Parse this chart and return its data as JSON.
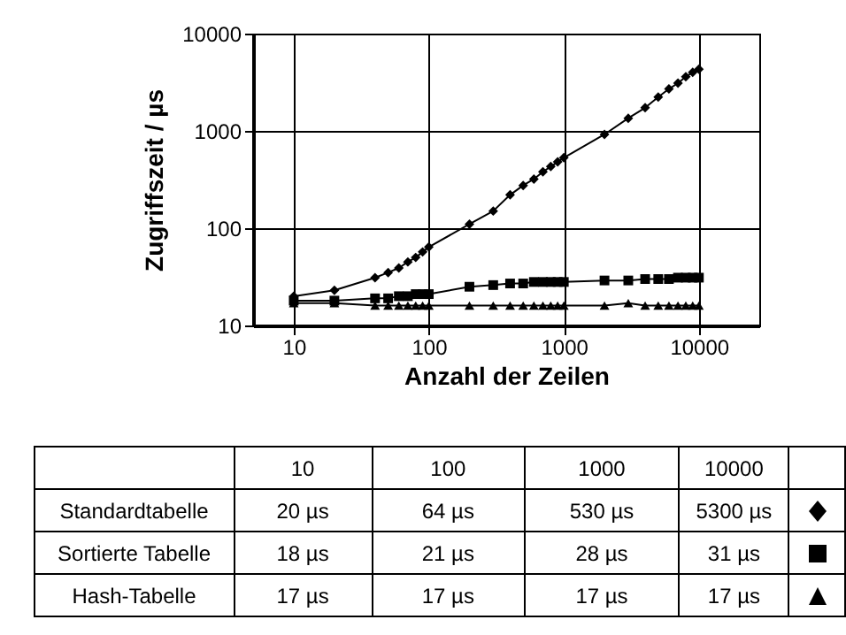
{
  "chart_data": [
    {
      "type": "line",
      "xlabel": "Anzahl der Zeilen",
      "ylabel": "Zugriffszeit / µs",
      "log": "xy",
      "grid": true,
      "xlim": [
        5,
        28000
      ],
      "xticks": [
        10,
        100,
        1000,
        10000
      ],
      "ylim": [
        10,
        10000
      ],
      "yticks": [
        10,
        100,
        1000,
        10000
      ],
      "x": [
        10,
        20,
        40,
        50,
        60,
        70,
        80,
        90,
        100,
        200,
        300,
        400,
        500,
        600,
        700,
        800,
        900,
        1000,
        2000,
        3000,
        4000,
        5000,
        6000,
        7000,
        8000,
        9000,
        10000
      ],
      "series": [
        {
          "name": "Standardtabelle",
          "color": "#000000",
          "marker": "diamond",
          "values": [
            20,
            23,
            31,
            35,
            39,
            45,
            50,
            57,
            64,
            110,
            150,
            220,
            275,
            320,
            380,
            430,
            480,
            530,
            920,
            1350,
            1730,
            2230,
            2700,
            3100,
            3600,
            4000,
            4300
          ]
        },
        {
          "name": "Sortierte Tabelle",
          "color": "#000000",
          "marker": "square",
          "values": [
            18,
            18,
            19,
            19,
            20,
            20,
            21,
            21,
            21,
            25,
            26,
            27,
            27,
            28,
            28,
            28,
            28,
            28,
            29,
            29,
            30,
            30,
            30,
            31,
            31,
            31,
            31
          ]
        },
        {
          "name": "Hash-Tabelle",
          "color": "#000000",
          "marker": "triangle",
          "values": [
            17,
            17,
            16,
            16,
            16,
            16,
            16,
            16,
            16,
            16,
            16,
            16,
            16,
            16,
            16,
            16,
            16,
            16,
            16,
            17,
            16,
            16,
            16,
            16,
            16,
            16,
            16
          ]
        }
      ]
    },
    {
      "type": "other",
      "categories": [
        "10",
        "100",
        "1000",
        "10000"
      ],
      "cell_labels": [
        [
          "20 µs",
          "64 µs",
          "530 µs",
          "5300 µs"
        ],
        [
          "18 µs",
          "21 µs",
          "28 µs",
          "31 µs"
        ],
        [
          "17 µs",
          "17 µs",
          "17 µs",
          "17 µs"
        ]
      ]
    }
  ]
}
